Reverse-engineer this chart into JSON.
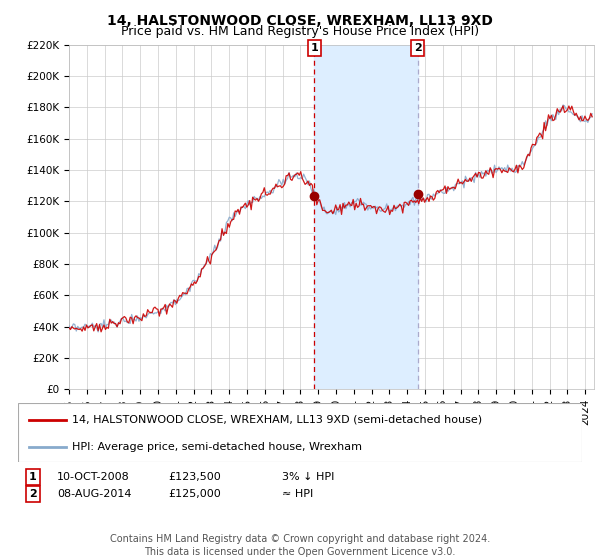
{
  "title": "14, HALSTONWOOD CLOSE, WREXHAM, LL13 9XD",
  "subtitle": "Price paid vs. HM Land Registry's House Price Index (HPI)",
  "ylim": [
    0,
    220000
  ],
  "yticks": [
    0,
    20000,
    40000,
    60000,
    80000,
    100000,
    120000,
    140000,
    160000,
    180000,
    200000,
    220000
  ],
  "ytick_labels": [
    "£0",
    "£20K",
    "£40K",
    "£60K",
    "£80K",
    "£100K",
    "£120K",
    "£140K",
    "£160K",
    "£180K",
    "£200K",
    "£220K"
  ],
  "transaction1_year": 2008.792,
  "transaction1_price": 123500,
  "transaction2_year": 2014.583,
  "transaction2_price": 125000,
  "line_color_price": "#cc0000",
  "line_color_hpi": "#88aacc",
  "shade_color": "#ddeeff",
  "vline1_color": "#cc0000",
  "vline2_color": "#aaaacc",
  "legend_price_label": "14, HALSTONWOOD CLOSE, WREXHAM, LL13 9XD (semi-detached house)",
  "legend_hpi_label": "HPI: Average price, semi-detached house, Wrexham",
  "ann1_date": "10-OCT-2008",
  "ann1_price": "£123,500",
  "ann1_rel": "3% ↓ HPI",
  "ann2_date": "08-AUG-2014",
  "ann2_price": "£125,000",
  "ann2_rel": "≈ HPI",
  "footer": "Contains HM Land Registry data © Crown copyright and database right 2024.\nThis data is licensed under the Open Government Licence v3.0.",
  "title_fontsize": 10,
  "subtitle_fontsize": 9,
  "tick_fontsize": 7.5,
  "legend_fontsize": 8,
  "ann_fontsize": 8,
  "footer_fontsize": 7,
  "background_color": "#ffffff",
  "grid_color": "#cccccc",
  "xlim_left": 1995.0,
  "xlim_right": 2024.5
}
